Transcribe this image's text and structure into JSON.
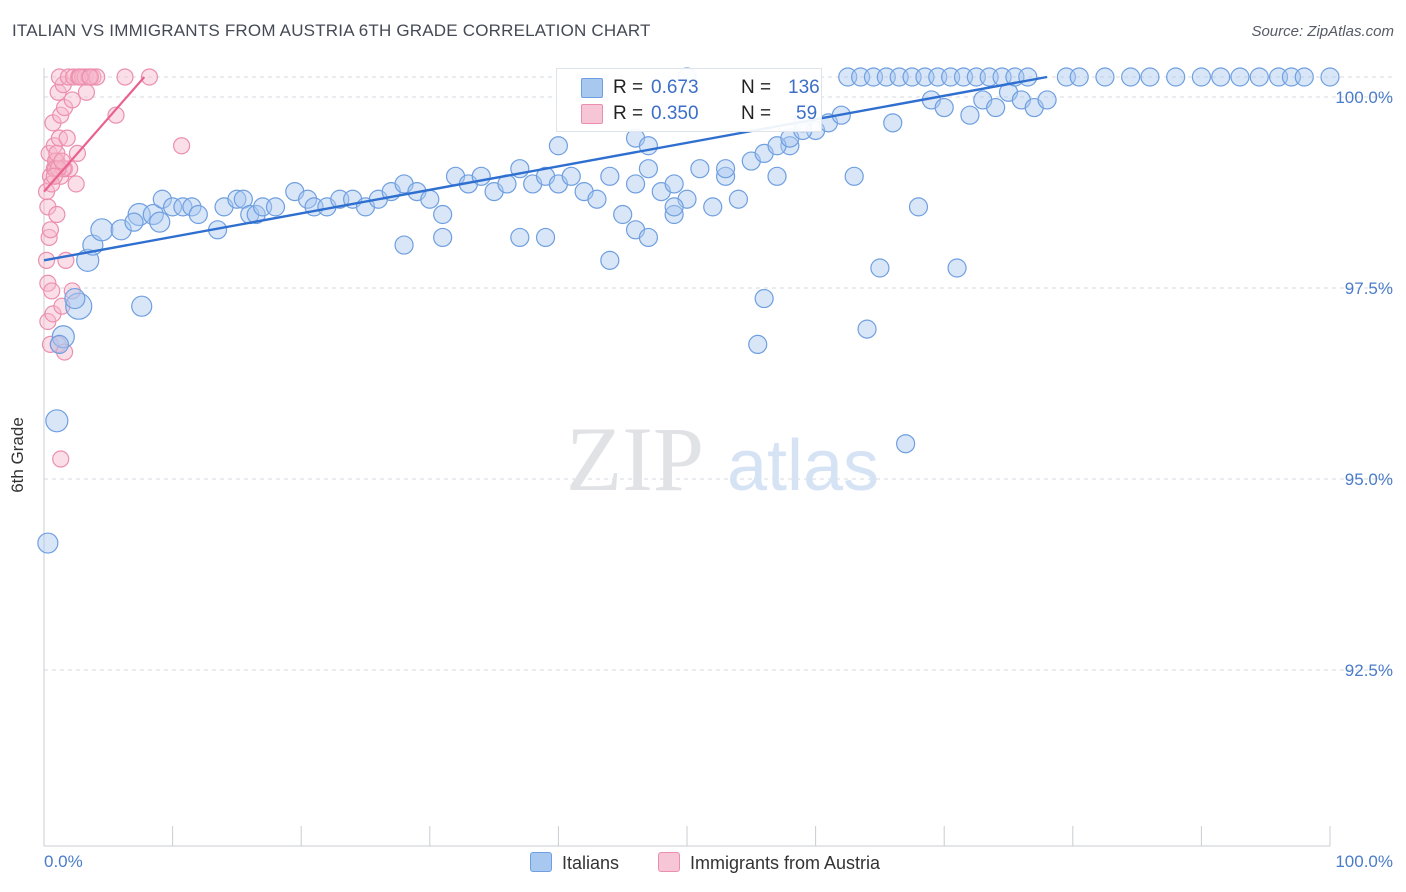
{
  "title": "ITALIAN VS IMMIGRANTS FROM AUSTRIA 6TH GRADE CORRELATION CHART",
  "source": "Source: ZipAtlas.com",
  "watermark": {
    "zip": "ZIP",
    "atlas": "atlas"
  },
  "legend": {
    "rows": [
      {
        "r_label": "R =",
        "r_value": "0.673",
        "n_label": "N =",
        "n_value": "136"
      },
      {
        "r_label": "R =",
        "r_value": "0.350",
        "n_label": "N =",
        "n_value": "59"
      }
    ]
  },
  "bottom_legend": [
    "Italians",
    "Immigrants from Austria"
  ],
  "colors": {
    "blue_fill": "#a9c8f0",
    "blue_stroke": "#6f9fe0",
    "blue_line": "#2f6fd0",
    "pink_fill": "#f7b8cc",
    "pink_stroke": "#ec8fae",
    "pink_line": "#e8628d",
    "tick_label": "#4a7cc9",
    "grid": "#d5d9e0"
  },
  "chart_data": {
    "type": "scatter",
    "title": "ITALIAN VS IMMIGRANTS FROM AUSTRIA 6TH GRADE CORRELATION CHART",
    "xlabel": "",
    "ylabel": "6th Grade",
    "xlim": [
      0,
      100
    ],
    "ylim": [
      90.5,
      100.3
    ],
    "x_tick_labels": [
      "0.0%",
      "100.0%"
    ],
    "y_ticks": [
      92.5,
      95.0,
      97.5,
      100.0
    ],
    "y_tick_labels": [
      "92.5%",
      "95.0%",
      "97.5%",
      "100.0%"
    ],
    "grid": "dashed horizontal",
    "series": [
      {
        "name": "Italians",
        "R": 0.673,
        "N": 136,
        "trend": [
          [
            0,
            97.6
          ],
          [
            78,
            100.0
          ]
        ],
        "points": [
          [
            0.3,
            93.9,
            10
          ],
          [
            1.0,
            95.5,
            11
          ],
          [
            1.5,
            96.6,
            11
          ],
          [
            1.2,
            96.5,
            9
          ],
          [
            2.7,
            97.0,
            13
          ],
          [
            2.4,
            97.1,
            10
          ],
          [
            3.4,
            97.6,
            11
          ],
          [
            3.8,
            97.8,
            10
          ],
          [
            4.5,
            98.0,
            11
          ],
          [
            6.0,
            98.0,
            10
          ],
          [
            7.6,
            97.0,
            10
          ],
          [
            7.4,
            98.2,
            11
          ],
          [
            8.5,
            98.2,
            10
          ],
          [
            9.0,
            98.1,
            10
          ],
          [
            7.0,
            98.1,
            9
          ],
          [
            9.2,
            98.4,
            9
          ],
          [
            10.0,
            98.3,
            9
          ],
          [
            10.8,
            98.3,
            9
          ],
          [
            11.5,
            98.3,
            9
          ],
          [
            12.0,
            98.2,
            9
          ],
          [
            13.5,
            98.0,
            9
          ],
          [
            14.0,
            98.3,
            9
          ],
          [
            15.0,
            98.4,
            9
          ],
          [
            15.5,
            98.4,
            9
          ],
          [
            16.0,
            98.2,
            9
          ],
          [
            16.5,
            98.2,
            9
          ],
          [
            17.0,
            98.3,
            9
          ],
          [
            18.0,
            98.3,
            9
          ],
          [
            19.5,
            98.5,
            9
          ],
          [
            20.5,
            98.4,
            9
          ],
          [
            21.0,
            98.3,
            9
          ],
          [
            22.0,
            98.3,
            9
          ],
          [
            23.0,
            98.4,
            9
          ],
          [
            24.0,
            98.4,
            9
          ],
          [
            25.0,
            98.3,
            9
          ],
          [
            26.0,
            98.4,
            9
          ],
          [
            27.0,
            98.5,
            9
          ],
          [
            28.0,
            98.6,
            9
          ],
          [
            29.0,
            98.5,
            9
          ],
          [
            30.0,
            98.4,
            9
          ],
          [
            31.0,
            98.2,
            9
          ],
          [
            32.0,
            98.7,
            9
          ],
          [
            33.0,
            98.6,
            9
          ],
          [
            34.0,
            98.7,
            9
          ],
          [
            35.0,
            98.5,
            9
          ],
          [
            36.0,
            98.6,
            9
          ],
          [
            37.0,
            98.8,
            9
          ],
          [
            38.0,
            98.6,
            9
          ],
          [
            39.0,
            98.7,
            9
          ],
          [
            40.0,
            98.6,
            9
          ],
          [
            41.0,
            98.7,
            9
          ],
          [
            42.0,
            98.5,
            9
          ],
          [
            43.0,
            98.4,
            9
          ],
          [
            44.0,
            98.7,
            9
          ],
          [
            45.0,
            98.2,
            9
          ],
          [
            46.0,
            98.6,
            9
          ],
          [
            47.0,
            98.8,
            9
          ],
          [
            48.0,
            98.5,
            9
          ],
          [
            49.0,
            98.6,
            9
          ],
          [
            50.0,
            98.4,
            9
          ],
          [
            51.0,
            98.8,
            9
          ],
          [
            52.0,
            98.3,
            9
          ],
          [
            53.0,
            98.7,
            9
          ],
          [
            54.0,
            98.4,
            9
          ],
          [
            55.0,
            98.9,
            9
          ],
          [
            56.0,
            99.0,
            9
          ],
          [
            57.0,
            98.7,
            9
          ],
          [
            58.0,
            99.1,
            9
          ],
          [
            59.0,
            99.4,
            9
          ],
          [
            60.0,
            99.3,
            9
          ],
          [
            28.0,
            97.8,
            9
          ],
          [
            31.0,
            97.9,
            9
          ],
          [
            37.0,
            97.9,
            9
          ],
          [
            39.0,
            97.9,
            9
          ],
          [
            44.0,
            97.6,
            9
          ],
          [
            46.0,
            98.0,
            9
          ],
          [
            47.0,
            97.9,
            9
          ],
          [
            49.0,
            98.2,
            9
          ],
          [
            40.0,
            99.1,
            9
          ],
          [
            46.0,
            99.2,
            9
          ],
          [
            47.0,
            99.1,
            9
          ],
          [
            49.0,
            98.3,
            9
          ],
          [
            53.0,
            98.8,
            9
          ],
          [
            56.0,
            97.1,
            9
          ],
          [
            57.0,
            99.1,
            9
          ],
          [
            58.0,
            99.2,
            9
          ],
          [
            59.0,
            99.3,
            9
          ],
          [
            61.0,
            99.4,
            9
          ],
          [
            62.0,
            99.5,
            9
          ],
          [
            63.0,
            98.7,
            9
          ],
          [
            64.0,
            96.7,
            9
          ],
          [
            65.0,
            97.5,
            9
          ],
          [
            66.0,
            99.4,
            9
          ],
          [
            67.0,
            95.2,
            9
          ],
          [
            68.0,
            98.3,
            9
          ],
          [
            69.0,
            99.7,
            9
          ],
          [
            70.0,
            99.6,
            9
          ],
          [
            71.0,
            97.5,
            9
          ],
          [
            72.0,
            99.5,
            9
          ],
          [
            73.0,
            99.7,
            9
          ],
          [
            74.0,
            99.6,
            9
          ],
          [
            75.0,
            99.8,
            9
          ],
          [
            76.0,
            99.7,
            9
          ],
          [
            77.0,
            99.6,
            9
          ],
          [
            78.0,
            99.7,
            9
          ],
          [
            55.5,
            96.5,
            9
          ],
          [
            62.5,
            100.0,
            9
          ],
          [
            63.5,
            100.0,
            9
          ],
          [
            64.5,
            100.0,
            9
          ],
          [
            65.5,
            100.0,
            9
          ],
          [
            66.5,
            100.0,
            9
          ],
          [
            67.5,
            100.0,
            9
          ],
          [
            68.5,
            100.0,
            9
          ],
          [
            69.5,
            100.0,
            9
          ],
          [
            70.5,
            100.0,
            9
          ],
          [
            71.5,
            100.0,
            9
          ],
          [
            72.5,
            100.0,
            9
          ],
          [
            73.5,
            100.0,
            9
          ],
          [
            74.5,
            100.0,
            9
          ],
          [
            75.5,
            100.0,
            9
          ],
          [
            76.5,
            100.0,
            9
          ],
          [
            79.5,
            100.0,
            9
          ],
          [
            80.5,
            100.0,
            9
          ],
          [
            82.5,
            100.0,
            9
          ],
          [
            84.5,
            100.0,
            9
          ],
          [
            86.0,
            100.0,
            9
          ],
          [
            88.0,
            100.0,
            9
          ],
          [
            90.0,
            100.0,
            9
          ],
          [
            91.5,
            100.0,
            9
          ],
          [
            93.0,
            100.0,
            9
          ],
          [
            94.5,
            100.0,
            9
          ],
          [
            96.0,
            100.0,
            9
          ],
          [
            97.0,
            100.0,
            9
          ],
          [
            98.0,
            100.0,
            9
          ],
          [
            100.0,
            100.0,
            9
          ],
          [
            50.0,
            100.0,
            9
          ]
        ]
      },
      {
        "name": "Immigrants from Austria",
        "R": 0.35,
        "N": 59,
        "trend": [
          [
            0.0,
            98.5
          ],
          [
            7.8,
            100.0
          ]
        ],
        "points": [
          [
            0.3,
            96.8,
            8
          ],
          [
            0.5,
            96.5,
            8
          ],
          [
            0.7,
            96.9,
            8
          ],
          [
            1.1,
            96.5,
            8
          ],
          [
            0.3,
            97.3,
            8
          ],
          [
            0.6,
            97.2,
            8
          ],
          [
            1.4,
            97.0,
            8
          ],
          [
            2.2,
            97.2,
            8
          ],
          [
            0.2,
            97.6,
            8
          ],
          [
            0.4,
            97.9,
            8
          ],
          [
            1.7,
            97.6,
            8
          ],
          [
            0.5,
            98.0,
            8
          ],
          [
            0.3,
            98.3,
            8
          ],
          [
            1.0,
            98.2,
            8
          ],
          [
            0.2,
            98.5,
            8
          ],
          [
            0.5,
            98.7,
            8
          ],
          [
            0.8,
            98.8,
            8
          ],
          [
            1.0,
            98.9,
            8
          ],
          [
            1.3,
            98.7,
            8
          ],
          [
            1.6,
            98.8,
            8
          ],
          [
            2.0,
            98.8,
            8
          ],
          [
            2.5,
            98.6,
            8
          ],
          [
            0.4,
            99.0,
            8
          ],
          [
            0.8,
            99.1,
            8
          ],
          [
            1.2,
            99.2,
            8
          ],
          [
            1.8,
            99.2,
            8
          ],
          [
            2.6,
            99.0,
            8
          ],
          [
            0.7,
            99.4,
            8
          ],
          [
            1.3,
            99.5,
            8
          ],
          [
            1.6,
            99.6,
            8
          ],
          [
            2.2,
            99.7,
            8
          ],
          [
            1.1,
            99.8,
            8
          ],
          [
            1.5,
            99.9,
            8
          ],
          [
            3.3,
            99.8,
            8
          ],
          [
            5.6,
            99.5,
            8
          ],
          [
            1.2,
            100.0,
            8
          ],
          [
            1.9,
            100.0,
            8
          ],
          [
            2.3,
            100.0,
            8
          ],
          [
            2.7,
            100.0,
            8
          ],
          [
            3.0,
            100.0,
            8
          ],
          [
            3.2,
            100.0,
            8
          ],
          [
            3.5,
            100.0,
            8
          ],
          [
            3.8,
            100.0,
            8
          ],
          [
            4.1,
            100.0,
            8
          ],
          [
            6.3,
            100.0,
            8
          ],
          [
            8.2,
            100.0,
            8
          ],
          [
            0.9,
            98.9,
            8
          ],
          [
            0.9,
            98.8,
            8
          ],
          [
            1.5,
            98.8,
            8
          ],
          [
            1.1,
            98.8,
            8
          ],
          [
            1.3,
            95.0,
            8
          ],
          [
            1.6,
            96.4,
            8
          ],
          [
            10.7,
            99.1,
            8
          ],
          [
            0.6,
            98.6,
            8
          ],
          [
            1.0,
            99.0,
            8
          ],
          [
            1.4,
            98.9,
            8
          ],
          [
            0.8,
            98.7,
            8
          ],
          [
            2.8,
            100.0,
            8
          ],
          [
            3.6,
            100.0,
            8
          ]
        ]
      }
    ]
  }
}
